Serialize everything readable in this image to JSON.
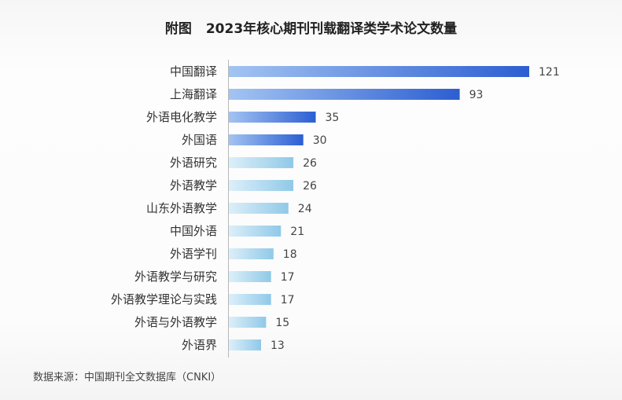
{
  "chart_data": {
    "type": "bar",
    "orientation": "horizontal",
    "title_prefix": "附图",
    "title": "2023年核心期刊刊载翻译类学术论文数量",
    "categories": [
      "中国翻译",
      "上海翻译",
      "外语电化教学",
      "外国语",
      "外语研究",
      "外语教学",
      "山东外语教学",
      "中国外语",
      "外语学刊",
      "外语教学与研究",
      "外语教学理论与实践",
      "外语与外语教学",
      "外语界"
    ],
    "values": [
      121,
      93,
      35,
      30,
      26,
      26,
      24,
      21,
      18,
      17,
      17,
      15,
      13
    ],
    "highlighted": [
      true,
      true,
      true,
      true,
      false,
      false,
      false,
      false,
      false,
      false,
      false,
      false,
      false
    ],
    "data_labels": true,
    "value_axis_visible": false,
    "grid": false,
    "legend": "none",
    "colors": {
      "highlight": [
        "#a3c4f2",
        "#2c5ed2"
      ],
      "normal": [
        "#dceff9",
        "#90c9e8"
      ],
      "axis": "#b8b8b8",
      "label": "#333333",
      "value_label": "#444444"
    }
  },
  "source": "数据来源：中国期刊全文数据库（CNKI）"
}
